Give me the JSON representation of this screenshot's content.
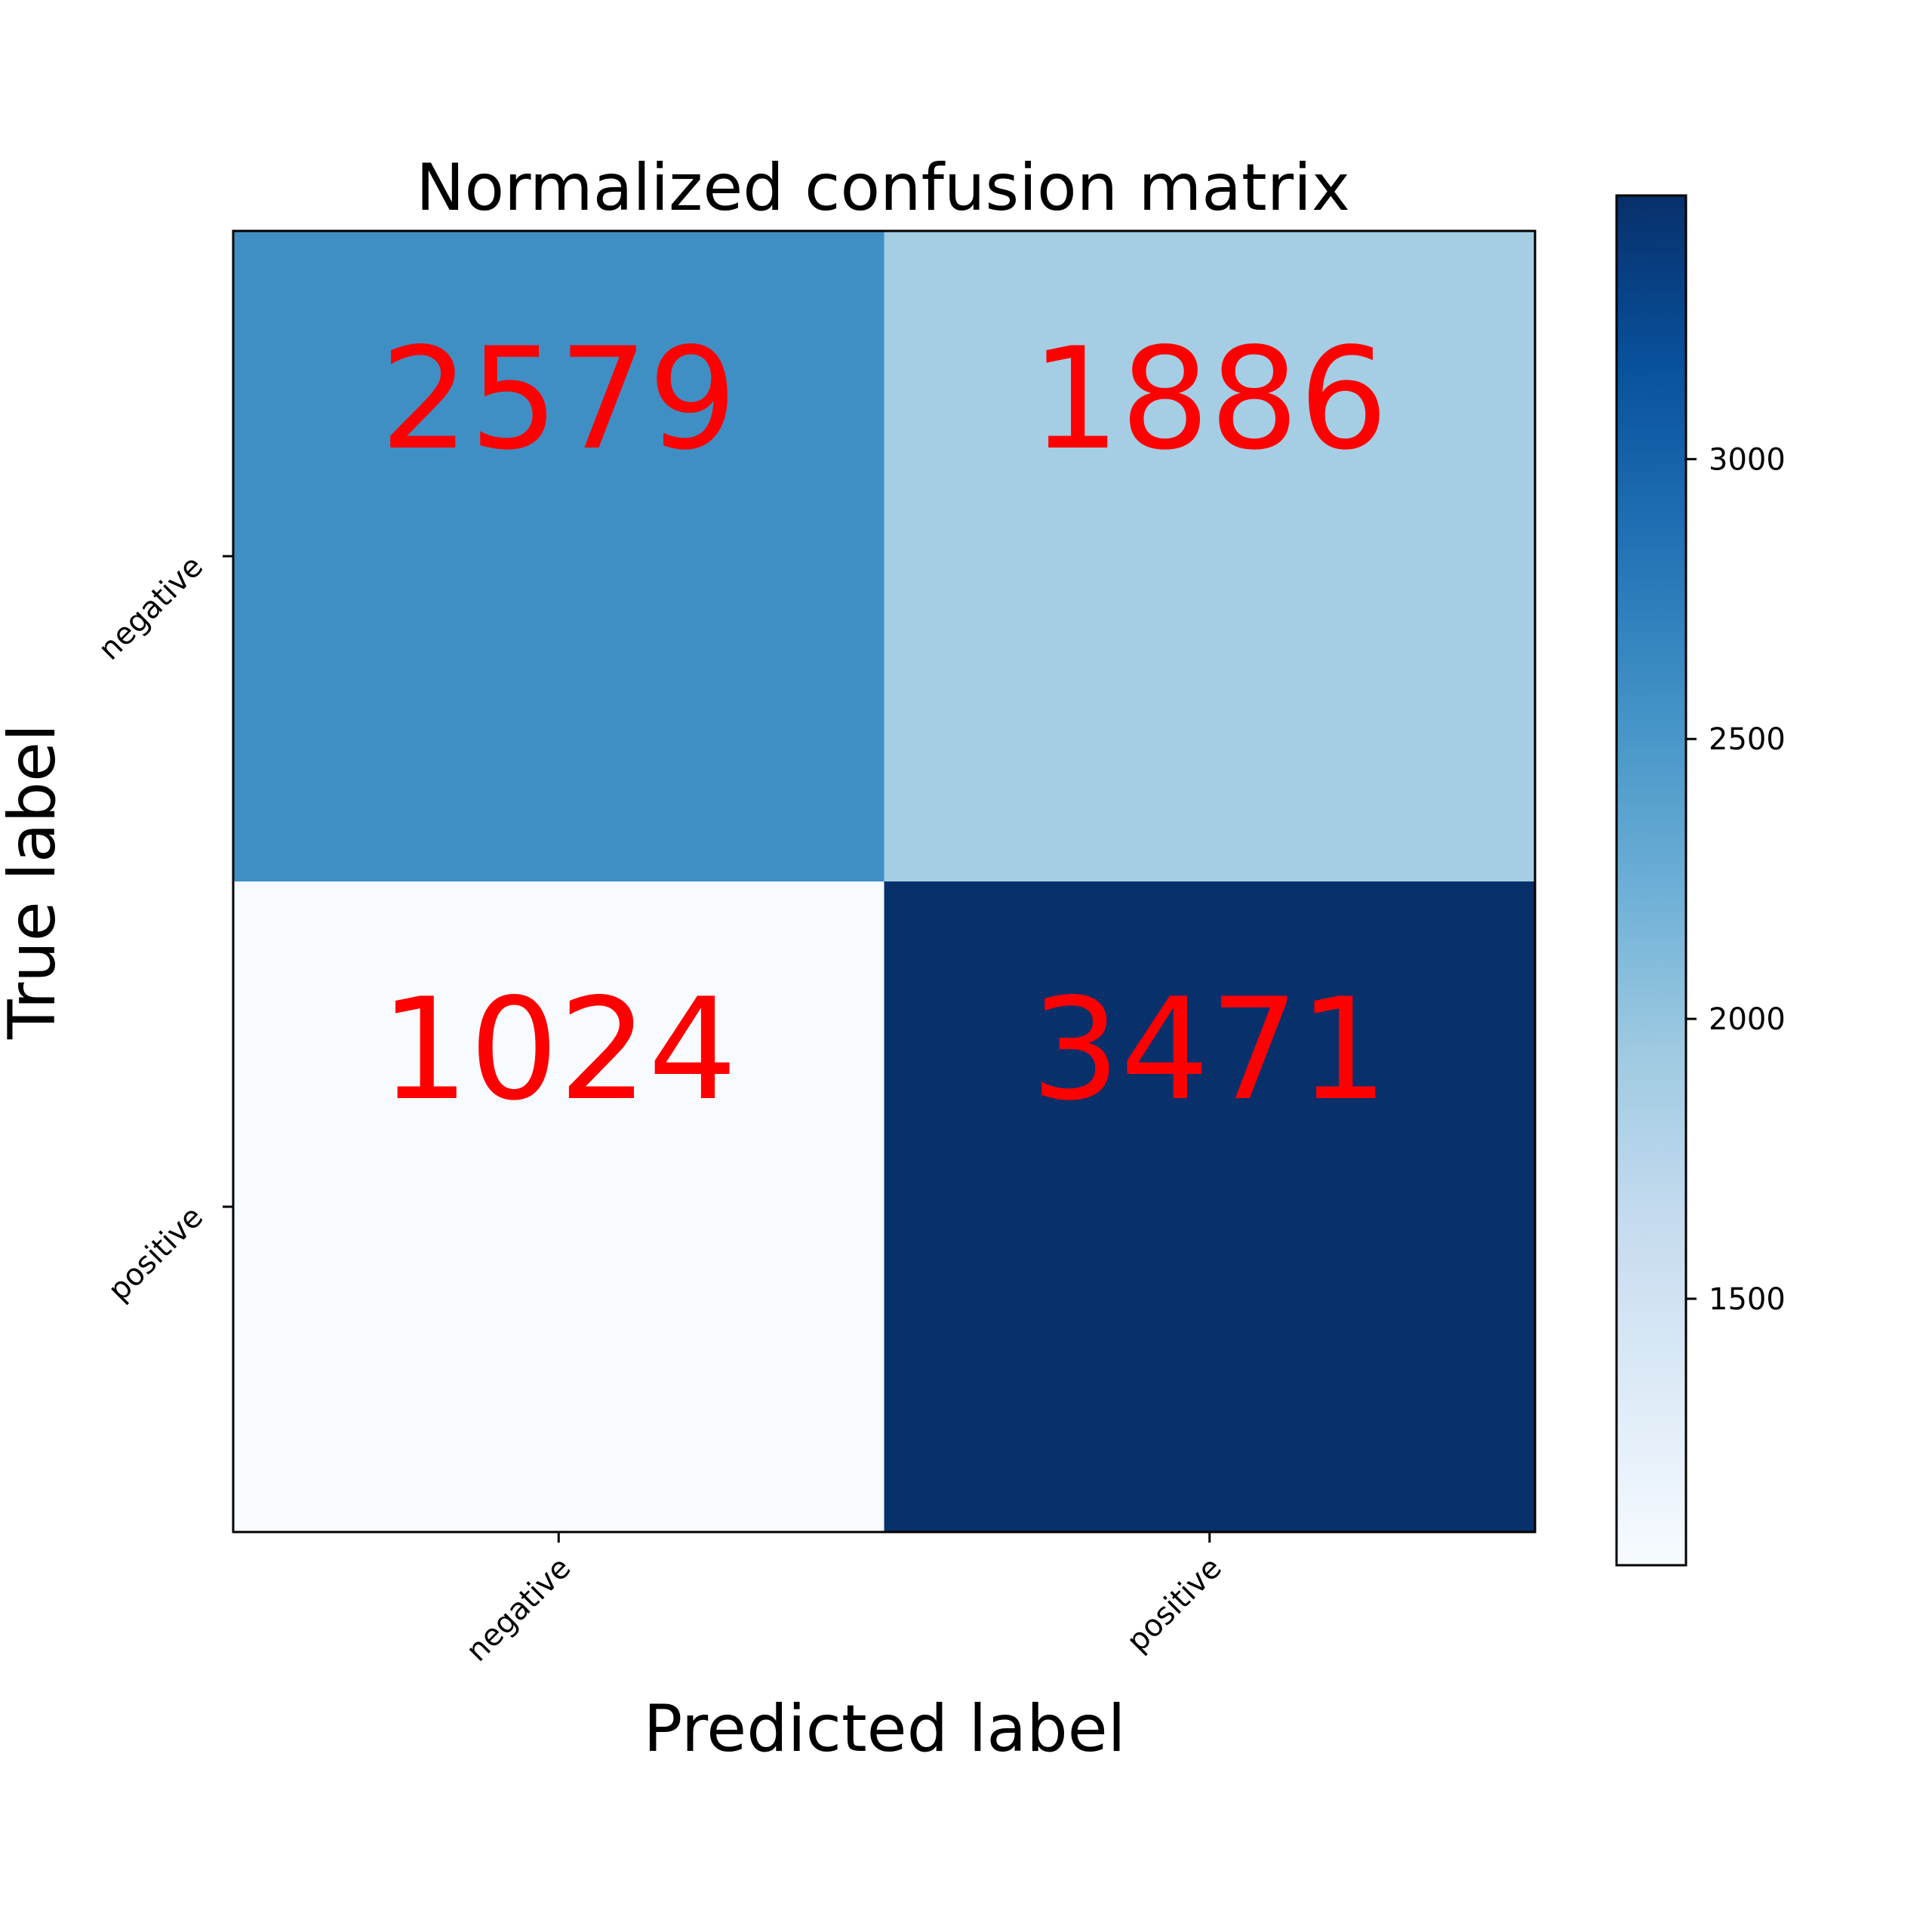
{
  "chart_data": {
    "type": "heatmap",
    "title": "Normalized confusion matrix",
    "xlabel": "Predicted label",
    "ylabel": "True label",
    "x_categories": [
      "negative",
      "positive"
    ],
    "y_categories": [
      "negative",
      "positive"
    ],
    "values": [
      [
        2579,
        1886
      ],
      [
        1024,
        3471
      ]
    ],
    "colormap": "Blues",
    "color_range": [
      1024,
      3471
    ],
    "colorbar_ticks": [
      1500,
      2000,
      2500,
      3000
    ],
    "cell_text_color": "#ff0000",
    "grid": false
  }
}
